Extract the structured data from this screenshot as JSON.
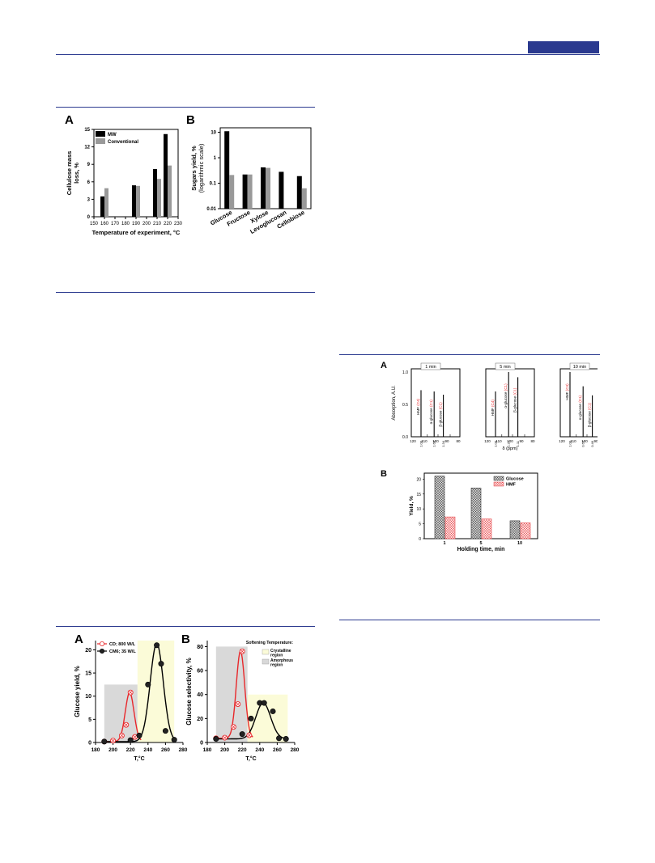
{
  "header": {
    "accent_color": "#2b3a8f"
  },
  "figures": [
    {
      "id": "fig1",
      "panels": [
        {
          "letter": "A",
          "chart_data": {
            "type": "bar",
            "xlabel": "Temperature of experiment, °C",
            "ylabel": "Cellulose mass loss, %",
            "xticks": [
              "150",
              "160",
              "170",
              "180",
              "190",
              "200",
              "210",
              "220",
              "230"
            ],
            "yticks": [
              "0",
              "3",
              "6",
              "9",
              "12",
              "15"
            ],
            "xlim": [
              150,
              230
            ],
            "ylim": [
              0,
              15
            ],
            "x": [
              160,
              190,
              210,
              220
            ],
            "series": [
              {
                "name": "MW",
                "color": "#000000",
                "values": [
                  3.5,
                  5.4,
                  8.2,
                  14.2
                ]
              },
              {
                "name": "Conventional",
                "color": "#999999",
                "values": [
                  4.9,
                  5.3,
                  6.5,
                  8.8
                ]
              }
            ]
          }
        },
        {
          "letter": "B",
          "chart_data": {
            "type": "bar",
            "scale": "log",
            "ylabel": "Sugars yield, %",
            "ylabel2": "(logarithmic scale)",
            "yticks": [
              "0.01",
              "0.1",
              "1",
              "10"
            ],
            "ylim": [
              0.01,
              15
            ],
            "categories": [
              "Glucose",
              "Fructose",
              "Xylose",
              "Levoglucosan",
              "Cellobiose"
            ],
            "series": [
              {
                "name": "MW",
                "color": "#000000",
                "values": [
                  11.0,
                  0.22,
                  0.42,
                  0.28,
                  0.19
                ]
              },
              {
                "name": "Conventional",
                "color": "#999999",
                "values": [
                  0.21,
                  0.22,
                  0.4,
                  null,
                  0.063
                ]
              }
            ]
          }
        }
      ]
    },
    {
      "id": "fig2",
      "panels": [
        {
          "letter": "A",
          "chart_data": {
            "type": "line",
            "ylabel": "Absorption, A.U.",
            "xlabel": "δ (ppm)",
            "yticks": [
              "0.0",
              "0.5",
              "1.0"
            ],
            "xticks": [
              "120",
              "110",
              "100",
              "90",
              "80"
            ],
            "spectra": [
              {
                "title": "1 min",
                "labels": [
                  "HMF (C4)",
                  "α-glucose (C1)",
                  "β-glucose (C1)"
                ],
                "integrals": [
                  "1.00",
                  "1.68",
                  "1.34"
                ]
              },
              {
                "title": "5 min",
                "labels": [
                  "HMF (C4)",
                  "α-glucose (C1)",
                  "β-glucose (C1)"
                ],
                "integrals": [
                  "1.00",
                  "1.27",
                  "1.11"
                ]
              },
              {
                "title": "10 min",
                "labels": [
                  "HMF (C4)",
                  "α-glucose (C1)",
                  "β-glucose (C1)"
                ],
                "integrals": [
                  "1.00",
                  "0.66",
                  "0.46"
                ]
              }
            ]
          }
        },
        {
          "letter": "B",
          "chart_data": {
            "type": "bar",
            "xlabel": "Holding time, min",
            "ylabel": "Yield, %",
            "categories": [
              "1",
              "5",
              "10"
            ],
            "yticks": [
              "0",
              "5",
              "10",
              "15",
              "20"
            ],
            "ylim": [
              0,
              22
            ],
            "series": [
              {
                "name": "Glucose",
                "color": "#777777",
                "values": [
                  21.0,
                  17.0,
                  6.0
                ]
              },
              {
                "name": "HMF",
                "color": "#e8474b",
                "values": [
                  7.3,
                  6.6,
                  5.3
                ]
              }
            ]
          }
        }
      ]
    },
    {
      "id": "fig3",
      "panels": [
        {
          "letter": "A",
          "chart_data": {
            "type": "scatter",
            "xlabel": "T,°C",
            "ylabel": "Glucose yield, %",
            "xticks": [
              "180",
              "200",
              "220",
              "240",
              "260",
              "280"
            ],
            "yticks": [
              "0",
              "5",
              "10",
              "15",
              "20"
            ],
            "xlim": [
              180,
              280
            ],
            "ylim": [
              0,
              22
            ],
            "series": [
              {
                "name": "CD; 800 W/L",
                "color": "#e8282b",
                "x": [
                  190,
                  200,
                  210,
                  215,
                  220,
                  225
                ],
                "y": [
                  0.2,
                  0.4,
                  1.5,
                  3.8,
                  10.8,
                  1.2
                ]
              },
              {
                "name": "CM6; 35 W/L",
                "color": "#000000",
                "x": [
                  190,
                  220,
                  230,
                  240,
                  250,
                  255,
                  260,
                  270
                ],
                "y": [
                  0.2,
                  0.5,
                  1.5,
                  12.5,
                  21.0,
                  17.0,
                  2.5,
                  0.6
                ]
              }
            ]
          }
        },
        {
          "letter": "B",
          "chart_data": {
            "type": "scatter",
            "xlabel": "T,°C",
            "ylabel": "Glucose selectivity, %",
            "xticks": [
              "180",
              "200",
              "220",
              "240",
              "260",
              "280"
            ],
            "yticks": [
              "0",
              "20",
              "40",
              "60",
              "80"
            ],
            "xlim": [
              180,
              280
            ],
            "ylim": [
              0,
              85
            ],
            "legend_title": "Softening Temperature:",
            "legend_items": [
              "Crystalline region",
              "Amorphous region"
            ],
            "series": [
              {
                "name": "CD; 800 W/L",
                "color": "#e8282b",
                "x": [
                  190,
                  200,
                  210,
                  215,
                  220,
                  228
                ],
                "y": [
                  3.5,
                  4,
                  13,
                  32,
                  76,
                  6
                ]
              },
              {
                "name": "CM6; 35 W/L",
                "color": "#000000",
                "x": [
                  190,
                  220,
                  230,
                  240,
                  245,
                  255,
                  262,
                  270
                ],
                "y": [
                  3,
                  7,
                  20,
                  33,
                  33,
                  26,
                  3.5,
                  3
                ]
              }
            ]
          }
        }
      ]
    }
  ]
}
